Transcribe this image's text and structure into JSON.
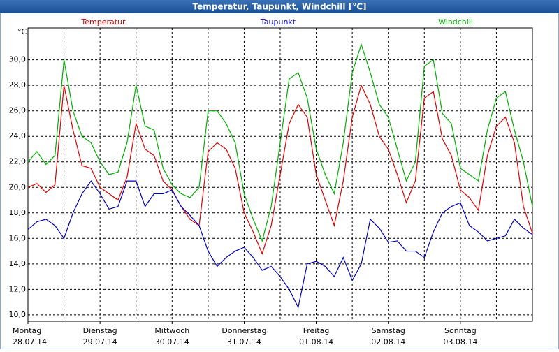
{
  "window_title": "Temperatur, Taupunkt, Windchill [°C]",
  "chart_data": {
    "type": "line",
    "ylabel": "°C",
    "x": [
      0,
      3,
      6,
      9,
      12,
      15,
      18,
      21,
      24,
      27,
      30,
      33,
      36,
      39,
      42,
      45,
      48,
      51,
      54,
      57,
      60,
      63,
      66,
      69,
      72,
      75,
      78,
      81,
      84,
      87,
      90,
      93,
      96,
      99,
      102,
      105,
      108,
      111,
      114,
      117,
      120,
      123,
      126,
      129,
      132,
      135,
      138,
      141,
      144,
      147,
      150,
      153,
      156,
      159,
      162,
      165,
      168
    ],
    "xlim": [
      0,
      168
    ],
    "xgrid": [
      12,
      24,
      36,
      48,
      60,
      72,
      84,
      96,
      108,
      120,
      132,
      144,
      156
    ],
    "day_labels": [
      {
        "value": 0,
        "label": "Montag",
        "date": "28.07.14"
      },
      {
        "value": 24,
        "label": "Dienstag",
        "date": "29.07.14"
      },
      {
        "value": 48,
        "label": "Mittwoch",
        "date": "30.07.14"
      },
      {
        "value": 72,
        "label": "Donnerstag",
        "date": "31.07.14"
      },
      {
        "value": 96,
        "label": "Freitag",
        "date": "01.08.14"
      },
      {
        "value": 120,
        "label": "Samstag",
        "date": "02.08.14"
      },
      {
        "value": 144,
        "label": "Sonntag",
        "date": "03.08.14"
      }
    ],
    "ylim": [
      9.5,
      32.5
    ],
    "yticks": [
      {
        "value": 10,
        "label": "10,0"
      },
      {
        "value": 12,
        "label": "12,0"
      },
      {
        "value": 14,
        "label": "14,0"
      },
      {
        "value": 16,
        "label": "16,0"
      },
      {
        "value": 18,
        "label": "18,0"
      },
      {
        "value": 20,
        "label": "20,0"
      },
      {
        "value": 22,
        "label": "22,0"
      },
      {
        "value": 24,
        "label": "24,0"
      },
      {
        "value": 26,
        "label": "26,0"
      },
      {
        "value": 28,
        "label": "28,0"
      },
      {
        "value": 30,
        "label": "30,0"
      }
    ],
    "grid": true,
    "series": [
      {
        "name": "Temperatur",
        "color": "#e00000",
        "values": [
          20.0,
          20.3,
          19.6,
          20.2,
          28.0,
          24.5,
          21.7,
          21.5,
          20.0,
          19.5,
          19.0,
          20.8,
          25.0,
          23.0,
          22.5,
          20.5,
          19.8,
          18.5,
          17.5,
          17.0,
          22.8,
          23.5,
          23.0,
          21.5,
          18.0,
          16.5,
          14.8,
          17.0,
          21.0,
          25.0,
          26.5,
          25.5,
          21.0,
          19.0,
          17.0,
          20.5,
          25.5,
          28.0,
          26.5,
          24.0,
          23.0,
          21.0,
          18.8,
          20.5,
          27.0,
          27.5,
          23.8,
          22.5,
          19.8,
          19.2,
          18.2,
          22.5,
          24.8,
          25.5,
          23.5,
          18.5,
          16.4
        ]
      },
      {
        "name": "Taupunkt",
        "color": "#0000c0",
        "values": [
          16.7,
          17.3,
          17.5,
          17.0,
          16.0,
          18.0,
          19.5,
          20.5,
          19.5,
          18.3,
          18.5,
          20.5,
          20.5,
          18.5,
          19.5,
          19.5,
          19.8,
          18.5,
          17.8,
          17.0,
          15.0,
          13.8,
          14.5,
          15.0,
          15.3,
          14.5,
          13.5,
          13.8,
          13.0,
          12.0,
          10.6,
          14.0,
          14.2,
          13.8,
          13.0,
          14.5,
          12.7,
          14.0,
          17.5,
          16.8,
          15.7,
          15.8,
          15.0,
          15.0,
          14.5,
          16.5,
          18.0,
          18.5,
          18.8,
          17.0,
          16.5,
          15.8,
          16.0,
          16.2,
          17.5,
          16.8,
          16.3
        ]
      },
      {
        "name": "Windchill",
        "color": "#00b000",
        "values": [
          22.0,
          22.8,
          21.8,
          22.5,
          30.0,
          26.0,
          24.0,
          23.5,
          22.0,
          21.0,
          21.2,
          23.5,
          28.0,
          24.8,
          24.5,
          21.5,
          20.2,
          19.5,
          19.2,
          20.0,
          26.0,
          26.0,
          25.0,
          23.5,
          19.5,
          17.5,
          15.8,
          18.5,
          23.5,
          28.5,
          29.0,
          27.0,
          23.0,
          21.0,
          19.5,
          23.5,
          29.0,
          31.2,
          29.0,
          26.5,
          25.5,
          23.0,
          20.5,
          22.0,
          29.5,
          30.0,
          25.8,
          25.0,
          21.5,
          21.0,
          20.5,
          24.5,
          27.0,
          27.5,
          24.5,
          22.0,
          18.5
        ]
      }
    ]
  }
}
